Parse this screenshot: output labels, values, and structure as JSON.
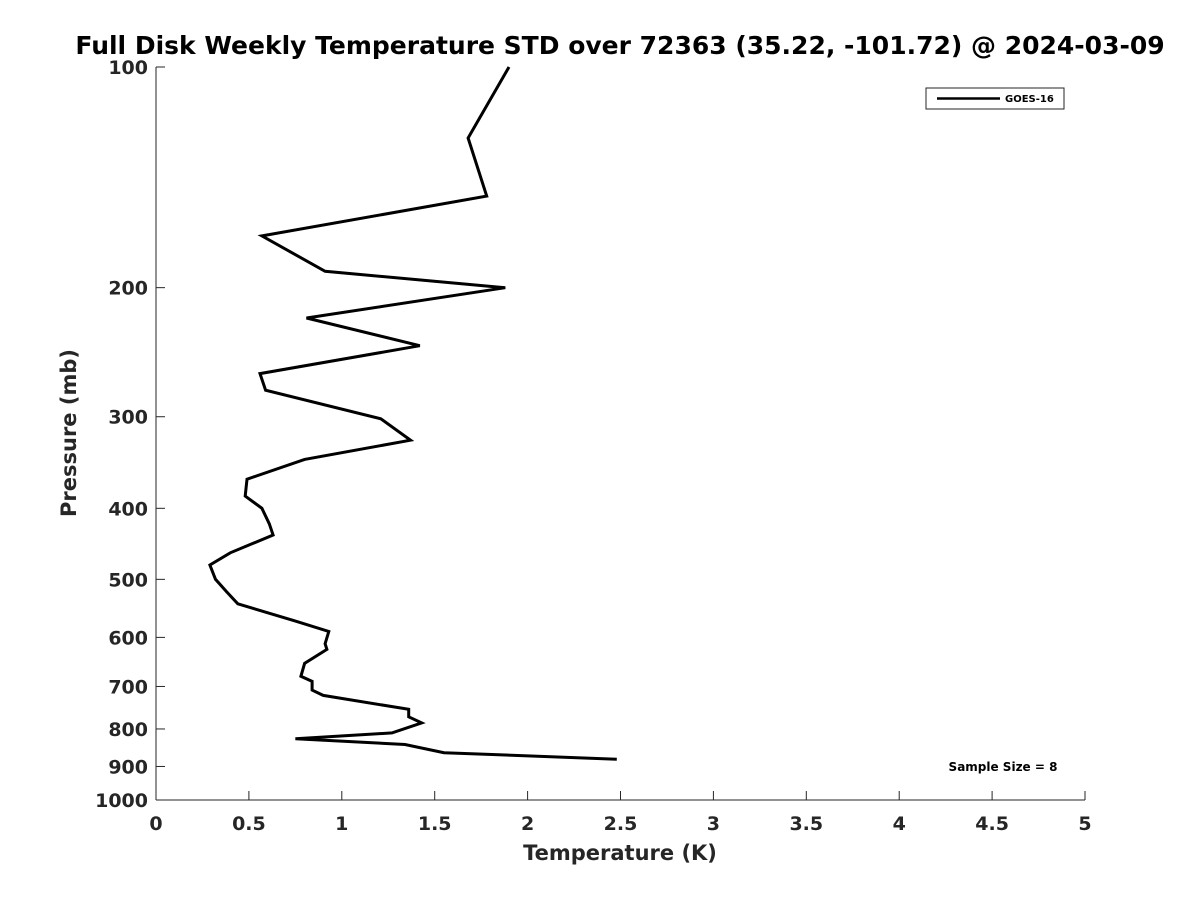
{
  "chart_data": {
    "type": "line",
    "title": "Full Disk Weekly Temperature STD over 72363 (35.22, -101.72) @ 2024-03-09",
    "xlabel": "Temperature (K)",
    "ylabel": "Pressure (mb)",
    "xlim": [
      0,
      5
    ],
    "ylim": [
      100,
      1000
    ],
    "y_scale": "log",
    "y_reversed": true,
    "x_ticks": [
      "0",
      "0.5",
      "1",
      "1.5",
      "2",
      "2.5",
      "3",
      "3.5",
      "4",
      "4.5",
      "5"
    ],
    "y_ticks": [
      "100",
      "200",
      "300",
      "400",
      "500",
      "600",
      "700",
      "800",
      "900",
      "1000"
    ],
    "grid": false,
    "legend_position": "top-right",
    "series": [
      {
        "name": "GOES-16",
        "color": "#000000",
        "x": [
          1.9,
          1.68,
          1.78,
          0.57,
          0.91,
          1.88,
          0.81,
          1.42,
          0.56,
          0.59,
          1.21,
          1.37,
          0.8,
          0.49,
          0.48,
          0.57,
          0.61,
          0.63,
          0.4,
          0.29,
          0.32,
          0.38,
          0.44,
          0.75,
          0.93,
          0.91,
          0.92,
          0.8,
          0.78,
          0.84,
          0.84,
          0.9,
          1.36,
          1.36,
          1.43,
          1.27,
          0.75,
          1.34,
          1.55,
          2.48
        ],
        "y": [
          100,
          125,
          150,
          170,
          190,
          200,
          220,
          240,
          262,
          276,
          302,
          323,
          343,
          365,
          385,
          400,
          420,
          435,
          460,
          478,
          500,
          520,
          540,
          570,
          589,
          612,
          623,
          651,
          678,
          689,
          708,
          720,
          752,
          770,
          785,
          810,
          825,
          840,
          862,
          880
        ]
      }
    ],
    "annotations": [
      "Sample Size = 8"
    ]
  }
}
